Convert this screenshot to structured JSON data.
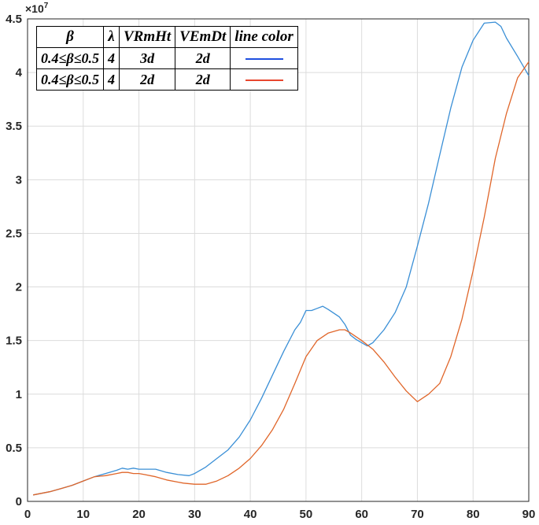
{
  "chart_data": {
    "type": "line",
    "xlim": [
      0,
      90
    ],
    "ylim": [
      0,
      4.5
    ],
    "x_ticks": [
      "0",
      "10",
      "20",
      "30",
      "40",
      "50",
      "60",
      "70",
      "80",
      "90"
    ],
    "y_ticks": [
      "0",
      "0.5",
      "1",
      "1.5",
      "2",
      "2.5",
      "3",
      "3.5",
      "4",
      "4.5"
    ],
    "y_multiplier": "×10",
    "y_multiplier_exp": "7",
    "grid": true,
    "legend_table": {
      "headers": [
        "β",
        "λ",
        "VRmHt",
        "VEmDt",
        "line color"
      ],
      "rows": [
        {
          "beta": "0.4≤β≤0.5",
          "lambda": "4",
          "vrmht": "3d",
          "vemdt": "2d",
          "color": "#1f4fe0"
        },
        {
          "beta": "0.4≤β≤0.5",
          "lambda": "4",
          "vrmht": "2d",
          "vemdt": "2d",
          "color": "#e8472e"
        }
      ]
    },
    "series": [
      {
        "color": "#3a8fd6",
        "x": [
          1,
          4,
          6,
          8,
          10,
          12,
          14,
          16,
          17,
          18,
          19,
          20,
          21,
          23,
          25,
          27,
          29,
          30,
          32,
          34,
          36,
          38,
          40,
          42,
          44,
          46,
          48,
          49,
          50,
          51,
          52,
          53,
          54,
          56,
          57,
          58,
          59,
          60,
          61,
          62,
          64,
          66,
          68,
          70,
          72,
          74,
          76,
          78,
          80,
          82,
          84,
          85,
          86,
          88,
          90
        ],
        "y": [
          0.06,
          0.09,
          0.12,
          0.15,
          0.19,
          0.23,
          0.26,
          0.29,
          0.31,
          0.3,
          0.31,
          0.3,
          0.3,
          0.3,
          0.27,
          0.25,
          0.24,
          0.26,
          0.32,
          0.4,
          0.48,
          0.6,
          0.76,
          0.96,
          1.18,
          1.4,
          1.6,
          1.67,
          1.78,
          1.78,
          1.8,
          1.82,
          1.79,
          1.72,
          1.65,
          1.55,
          1.51,
          1.48,
          1.45,
          1.48,
          1.6,
          1.76,
          2.0,
          2.38,
          2.78,
          3.23,
          3.67,
          4.05,
          4.3,
          4.46,
          4.47,
          4.43,
          4.32,
          4.15,
          3.97
        ]
      },
      {
        "color": "#e0662a",
        "x": [
          1,
          4,
          6,
          8,
          10,
          12,
          14,
          16,
          17,
          18,
          19,
          20,
          21,
          23,
          25,
          27,
          28,
          30,
          31,
          32,
          34,
          36,
          38,
          40,
          42,
          44,
          46,
          48,
          50,
          52,
          54,
          56,
          57,
          58,
          60,
          62,
          64,
          66,
          68,
          70,
          72,
          74,
          76,
          78,
          80,
          82,
          84,
          86,
          88,
          90
        ],
        "y": [
          0.06,
          0.09,
          0.12,
          0.15,
          0.19,
          0.23,
          0.24,
          0.26,
          0.27,
          0.27,
          0.26,
          0.26,
          0.25,
          0.23,
          0.2,
          0.18,
          0.17,
          0.16,
          0.16,
          0.16,
          0.19,
          0.24,
          0.31,
          0.4,
          0.52,
          0.67,
          0.86,
          1.1,
          1.35,
          1.5,
          1.57,
          1.6,
          1.6,
          1.57,
          1.5,
          1.42,
          1.3,
          1.16,
          1.03,
          0.93,
          1.0,
          1.1,
          1.35,
          1.7,
          2.15,
          2.65,
          3.2,
          3.62,
          3.95,
          4.1
        ]
      }
    ]
  }
}
